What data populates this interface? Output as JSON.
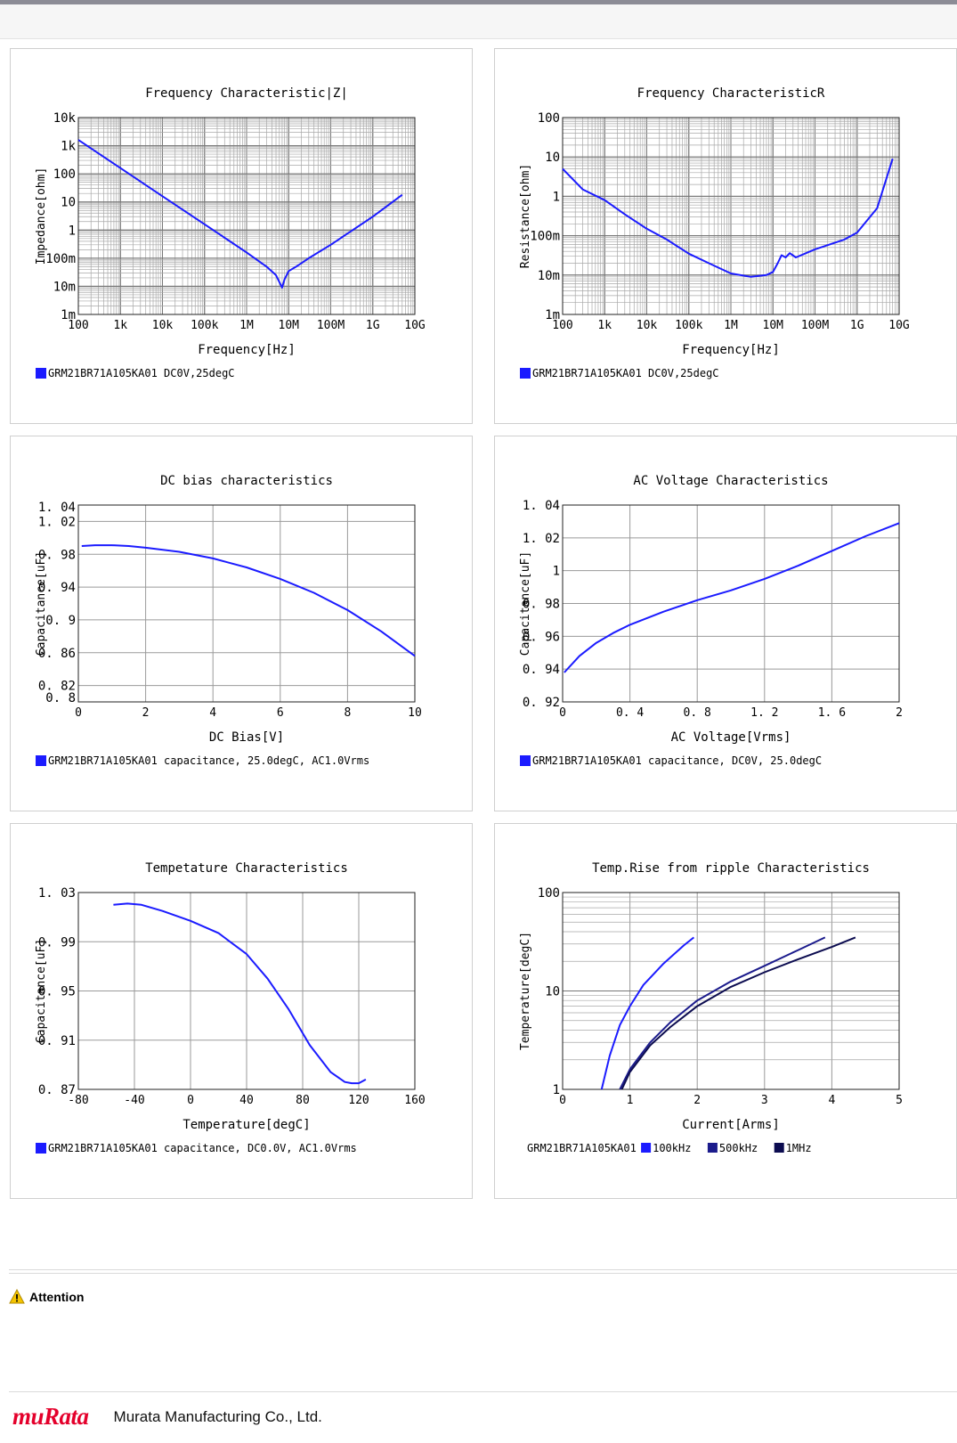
{
  "footer": {
    "logo_text": "muRata",
    "company": "Murata Manufacturing Co., Ltd."
  },
  "attention": {
    "label": "Attention"
  },
  "chart_data": [
    {
      "type": "line",
      "title": "Frequency  Characteristic|Z|",
      "xlabel": "Frequency[Hz]",
      "ylabel": "Impedance[ohm]",
      "x_scale": "log",
      "y_scale": "log",
      "xlim": [
        100,
        10000000000
      ],
      "ylim": [
        0.001,
        10000
      ],
      "x_ticks": [
        "100",
        "1k",
        "10k",
        "100k",
        "1M",
        "10M",
        "100M",
        "1G",
        "10G"
      ],
      "y_ticks": [
        "1m",
        "10m",
        "100m",
        "1",
        "10",
        "100",
        "1k",
        "10k"
      ],
      "legend": "GRM21BR71A105KA01 DC0V,25degC",
      "legend_color": "#1b1bff",
      "series": [
        {
          "color": "#1b1bff",
          "x": [
            100,
            1000,
            10000,
            100000,
            1000000,
            3000000,
            5000000,
            7000000,
            8000000,
            10000000,
            15000000,
            30000000,
            100000000,
            1000000000,
            5000000000
          ],
          "y": [
            1600,
            160,
            16,
            1.6,
            0.16,
            0.05,
            0.025,
            0.009,
            0.018,
            0.035,
            0.05,
            0.1,
            0.3,
            3,
            18
          ]
        }
      ]
    },
    {
      "type": "line",
      "title": "Frequency  CharacteristicR",
      "xlabel": "Frequency[Hz]",
      "ylabel": "Resistance[ohm]",
      "x_scale": "log",
      "y_scale": "log",
      "xlim": [
        100,
        10000000000
      ],
      "ylim": [
        0.001,
        100
      ],
      "x_ticks": [
        "100",
        "1k",
        "10k",
        "100k",
        "1M",
        "10M",
        "100M",
        "1G",
        "10G"
      ],
      "y_ticks": [
        "1m",
        "10m",
        "100m",
        "1",
        "10",
        "100"
      ],
      "legend": "GRM21BR71A105KA01 DC0V,25degC",
      "legend_color": "#1b1bff",
      "series": [
        {
          "color": "#1b1bff",
          "x": [
            100,
            300,
            1000,
            3000,
            10000,
            30000,
            100000,
            300000,
            1000000,
            3000000,
            7000000,
            10000000,
            13000000,
            16000000,
            20000000,
            25000000,
            35000000,
            100000000,
            500000000,
            1000000000,
            3000000000,
            7000000000
          ],
          "y": [
            5,
            1.5,
            0.8,
            0.35,
            0.15,
            0.08,
            0.035,
            0.02,
            0.011,
            0.009,
            0.01,
            0.012,
            0.02,
            0.032,
            0.028,
            0.036,
            0.028,
            0.045,
            0.08,
            0.12,
            0.5,
            9
          ]
        }
      ]
    },
    {
      "type": "line",
      "title": "DC bias characteristics",
      "xlabel": "DC Bias[V]",
      "ylabel": "Capacitance[uF]",
      "xlim": [
        0,
        10
      ],
      "ylim": [
        0.8,
        1.04
      ],
      "x_ticks": [
        "0",
        "2",
        "4",
        "6",
        "8",
        "10"
      ],
      "y_ticks": [
        "0.8",
        "0.82",
        "0.86",
        "0.9",
        "0.94",
        "0.98",
        "1.02",
        "1.04"
      ],
      "legend": "GRM21BR71A105KA01 capacitance, 25.0degC, AC1.0Vrms",
      "legend_color": "#1b1bff",
      "series": [
        {
          "color": "#1b1bff",
          "x": [
            0.1,
            0.5,
            1,
            1.5,
            2,
            3,
            4,
            5,
            6,
            7,
            8,
            9,
            10
          ],
          "y": [
            0.99,
            0.991,
            0.991,
            0.99,
            0.988,
            0.983,
            0.975,
            0.964,
            0.95,
            0.933,
            0.912,
            0.886,
            0.856
          ]
        }
      ]
    },
    {
      "type": "line",
      "title": "AC Voltage Characteristics",
      "xlabel": "AC Voltage[Vrms]",
      "ylabel": "Capacitance[uF]",
      "xlim": [
        0,
        2
      ],
      "ylim": [
        0.92,
        1.04
      ],
      "x_ticks": [
        "0",
        "0.4",
        "0.8",
        "1.2",
        "1.6",
        "2"
      ],
      "y_ticks": [
        "0.92",
        "0.94",
        "0.96",
        "0.98",
        "1",
        "1.02",
        "1.04"
      ],
      "legend": "GRM21BR71A105KA01 capacitance, DC0V, 25.0degC",
      "legend_color": "#1b1bff",
      "series": [
        {
          "color": "#1b1bff",
          "x": [
            0.01,
            0.1,
            0.2,
            0.3,
            0.4,
            0.6,
            0.8,
            1.0,
            1.2,
            1.4,
            1.6,
            1.8,
            2.0
          ],
          "y": [
            0.938,
            0.948,
            0.956,
            0.962,
            0.967,
            0.975,
            0.982,
            0.988,
            0.995,
            1.003,
            1.012,
            1.021,
            1.029
          ]
        }
      ]
    },
    {
      "type": "line",
      "title": "Tempetature  Characteristics",
      "xlabel": "Temperature[degC]",
      "ylabel": "Capacitance[uF]",
      "xlim": [
        -80,
        160
      ],
      "ylim": [
        0.87,
        1.03
      ],
      "x_ticks": [
        "-80",
        "-40",
        "0",
        "40",
        "80",
        "120",
        "160"
      ],
      "y_ticks": [
        "0.87",
        "0.91",
        "0.95",
        "0.99",
        "1.03"
      ],
      "legend": "GRM21BR71A105KA01 capacitance, DC0.0V, AC1.0Vrms",
      "legend_color": "#1b1bff",
      "series": [
        {
          "color": "#1b1bff",
          "x": [
            -55,
            -45,
            -35,
            -20,
            0,
            20,
            40,
            55,
            70,
            85,
            100,
            110,
            115,
            120,
            125
          ],
          "y": [
            1.02,
            1.021,
            1.02,
            1.015,
            1.007,
            0.997,
            0.98,
            0.96,
            0.935,
            0.906,
            0.884,
            0.876,
            0.875,
            0.875,
            0.878
          ]
        }
      ]
    },
    {
      "type": "line",
      "title": "Temp.Rise from ripple Characteristics",
      "xlabel": "Current[Arms]",
      "ylabel": "Temperature[degC]",
      "y_scale": "log",
      "xlim": [
        0,
        5
      ],
      "ylim": [
        1,
        100
      ],
      "x_ticks": [
        "0",
        "1",
        "2",
        "3",
        "4",
        "5"
      ],
      "y_ticks": [
        "1",
        "10",
        "100"
      ],
      "legend_prefix": "GRM21BR71A105KA01",
      "legend_entries": [
        {
          "label": "100kHz",
          "color": "#1b1bff"
        },
        {
          "label": "500kHz",
          "color": "#1b1b8c"
        },
        {
          "label": "1MHz",
          "color": "#0c0c50"
        }
      ],
      "series": [
        {
          "name": "100kHz",
          "color": "#1b1bff",
          "x": [
            0.58,
            0.7,
            0.85,
            1.0,
            1.2,
            1.5,
            1.8,
            1.95
          ],
          "y": [
            1,
            2.2,
            4.5,
            7,
            11.5,
            19,
            29,
            35
          ]
        },
        {
          "name": "500kHz",
          "color": "#1b1b8c",
          "x": [
            0.85,
            1.0,
            1.3,
            1.6,
            2.0,
            2.5,
            3.0,
            3.5,
            3.9
          ],
          "y": [
            1,
            1.6,
            3,
            4.8,
            8,
            12.5,
            18,
            26,
            35
          ]
        },
        {
          "name": "1MHz",
          "color": "#0c0c50",
          "x": [
            0.88,
            1.0,
            1.3,
            1.6,
            2.0,
            2.5,
            3.0,
            3.5,
            4.0,
            4.35
          ],
          "y": [
            1,
            1.5,
            2.8,
            4.3,
            7,
            11,
            15.5,
            21,
            28,
            35
          ]
        }
      ]
    }
  ]
}
